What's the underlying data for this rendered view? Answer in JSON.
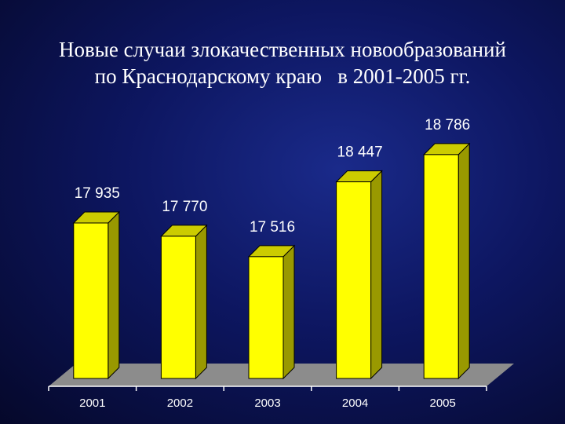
{
  "chart_data": {
    "type": "bar3d",
    "title": [
      "Новые случаи злокачественных новообразований",
      "по Краснодарскому краю   в 2001-2005 гг."
    ],
    "categories": [
      "2001",
      "2002",
      "2003",
      "2004",
      "2005"
    ],
    "values": [
      17935,
      17770,
      17516,
      18447,
      18786
    ],
    "value_labels": [
      "17 935",
      "17 770",
      "17 516",
      "18 447",
      "18 786"
    ],
    "color": "#ffff00",
    "ylim": [
      16000,
      19000
    ]
  }
}
